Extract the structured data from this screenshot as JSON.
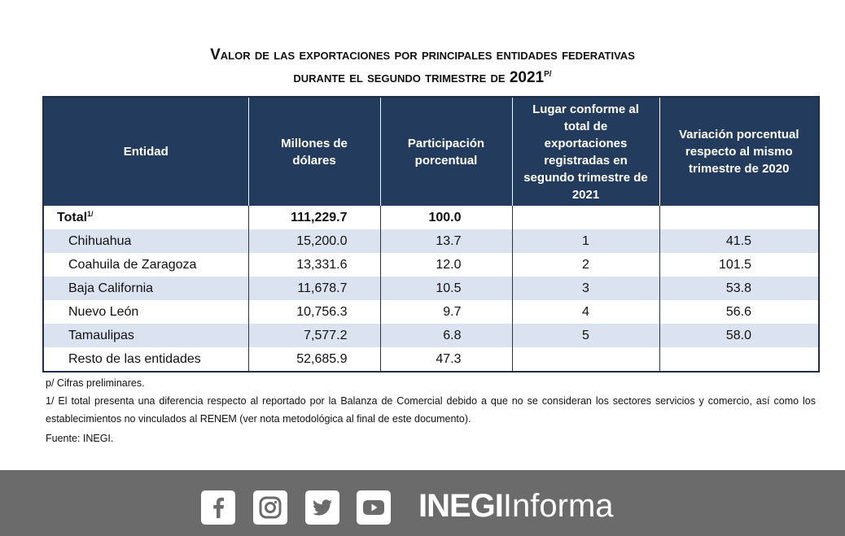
{
  "title": {
    "line1": "Valor de las exportaciones por principales entidades federativas",
    "line2_prefix": "durante el segundo trimestre de",
    "year": "2021",
    "mark": "P/"
  },
  "table": {
    "headers": [
      "Entidad",
      "Millones de dólares",
      "Participación porcentual",
      "Lugar conforme al total de exportaciones registradas en segundo trimestre de 2021",
      "Variación porcentual respecto al mismo trimestre de 2020"
    ],
    "total": {
      "label": "Total",
      "mark": "1/",
      "millones": "111,229.7",
      "participacion": "100.0",
      "lugar": "",
      "variacion": ""
    },
    "rows": [
      {
        "entidad": "Chihuahua",
        "millones": "15,200.0",
        "participacion": "13.7",
        "lugar": "1",
        "variacion": "41.5"
      },
      {
        "entidad": "Coahuila de Zaragoza",
        "millones": "13,331.6",
        "participacion": "12.0",
        "lugar": "2",
        "variacion": "101.5"
      },
      {
        "entidad": "Baja California",
        "millones": "11,678.7",
        "participacion": "10.5",
        "lugar": "3",
        "variacion": "53.8"
      },
      {
        "entidad": "Nuevo León",
        "millones": "10,756.3",
        "participacion": "9.7",
        "lugar": "4",
        "variacion": "56.6"
      },
      {
        "entidad": "Tamaulipas",
        "millones": "7,577.2",
        "participacion": "6.8",
        "lugar": "5",
        "variacion": "58.0"
      },
      {
        "entidad": "Resto de las entidades",
        "millones": "52,685.9",
        "participacion": "47.3",
        "lugar": "",
        "variacion": ""
      }
    ]
  },
  "notes": {
    "preliminary": "p/  Cifras preliminares.",
    "note1": "1/ El total presenta una diferencia respecto al reportado por la Balanza de Comercial debido a que no se consideran los sectores servicios y comercio, así como los establecimientos no vinculados al RENEM (ver nota metodológica al final de este documento).",
    "source": "Fuente: INEGI."
  },
  "footer": {
    "icons": [
      "facebook-icon",
      "instagram-icon",
      "twitter-icon",
      "youtube-icon"
    ],
    "brand_bold": "INEGI",
    "brand_light": "Informa",
    "background": "#6b6b6b"
  },
  "colors": {
    "header_bg": "#233b5d",
    "alt_row_bg": "#dce3f0"
  }
}
